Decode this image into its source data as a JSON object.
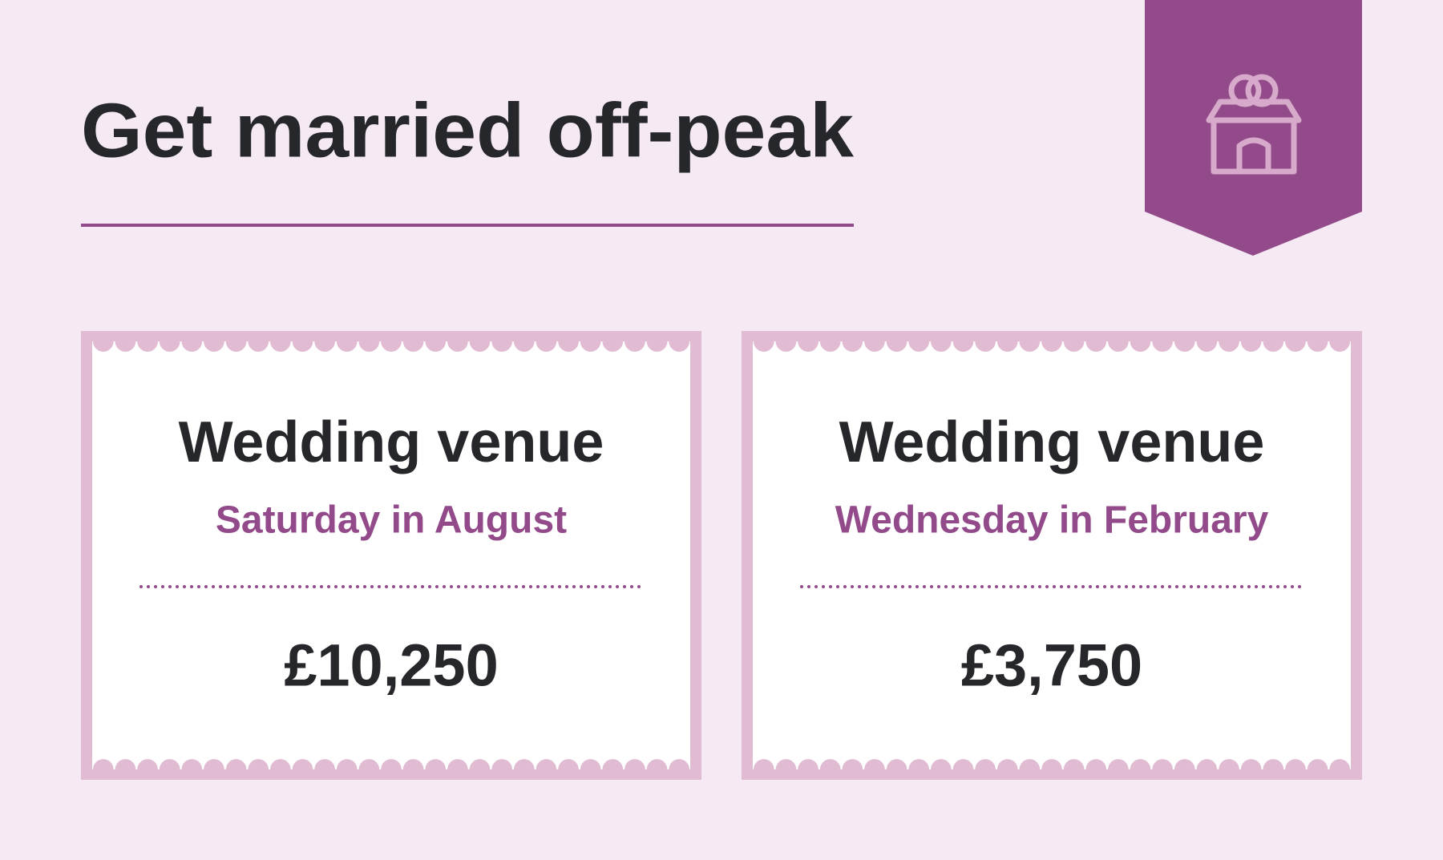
{
  "header": {
    "title": "Get married off-peak"
  },
  "cards": [
    {
      "heading": "Wedding venue",
      "subheading": "Saturday in August",
      "price": "£10,250"
    },
    {
      "heading": "Wedding venue",
      "subheading": "Wednesday in February",
      "price": "£3,750"
    }
  ]
}
